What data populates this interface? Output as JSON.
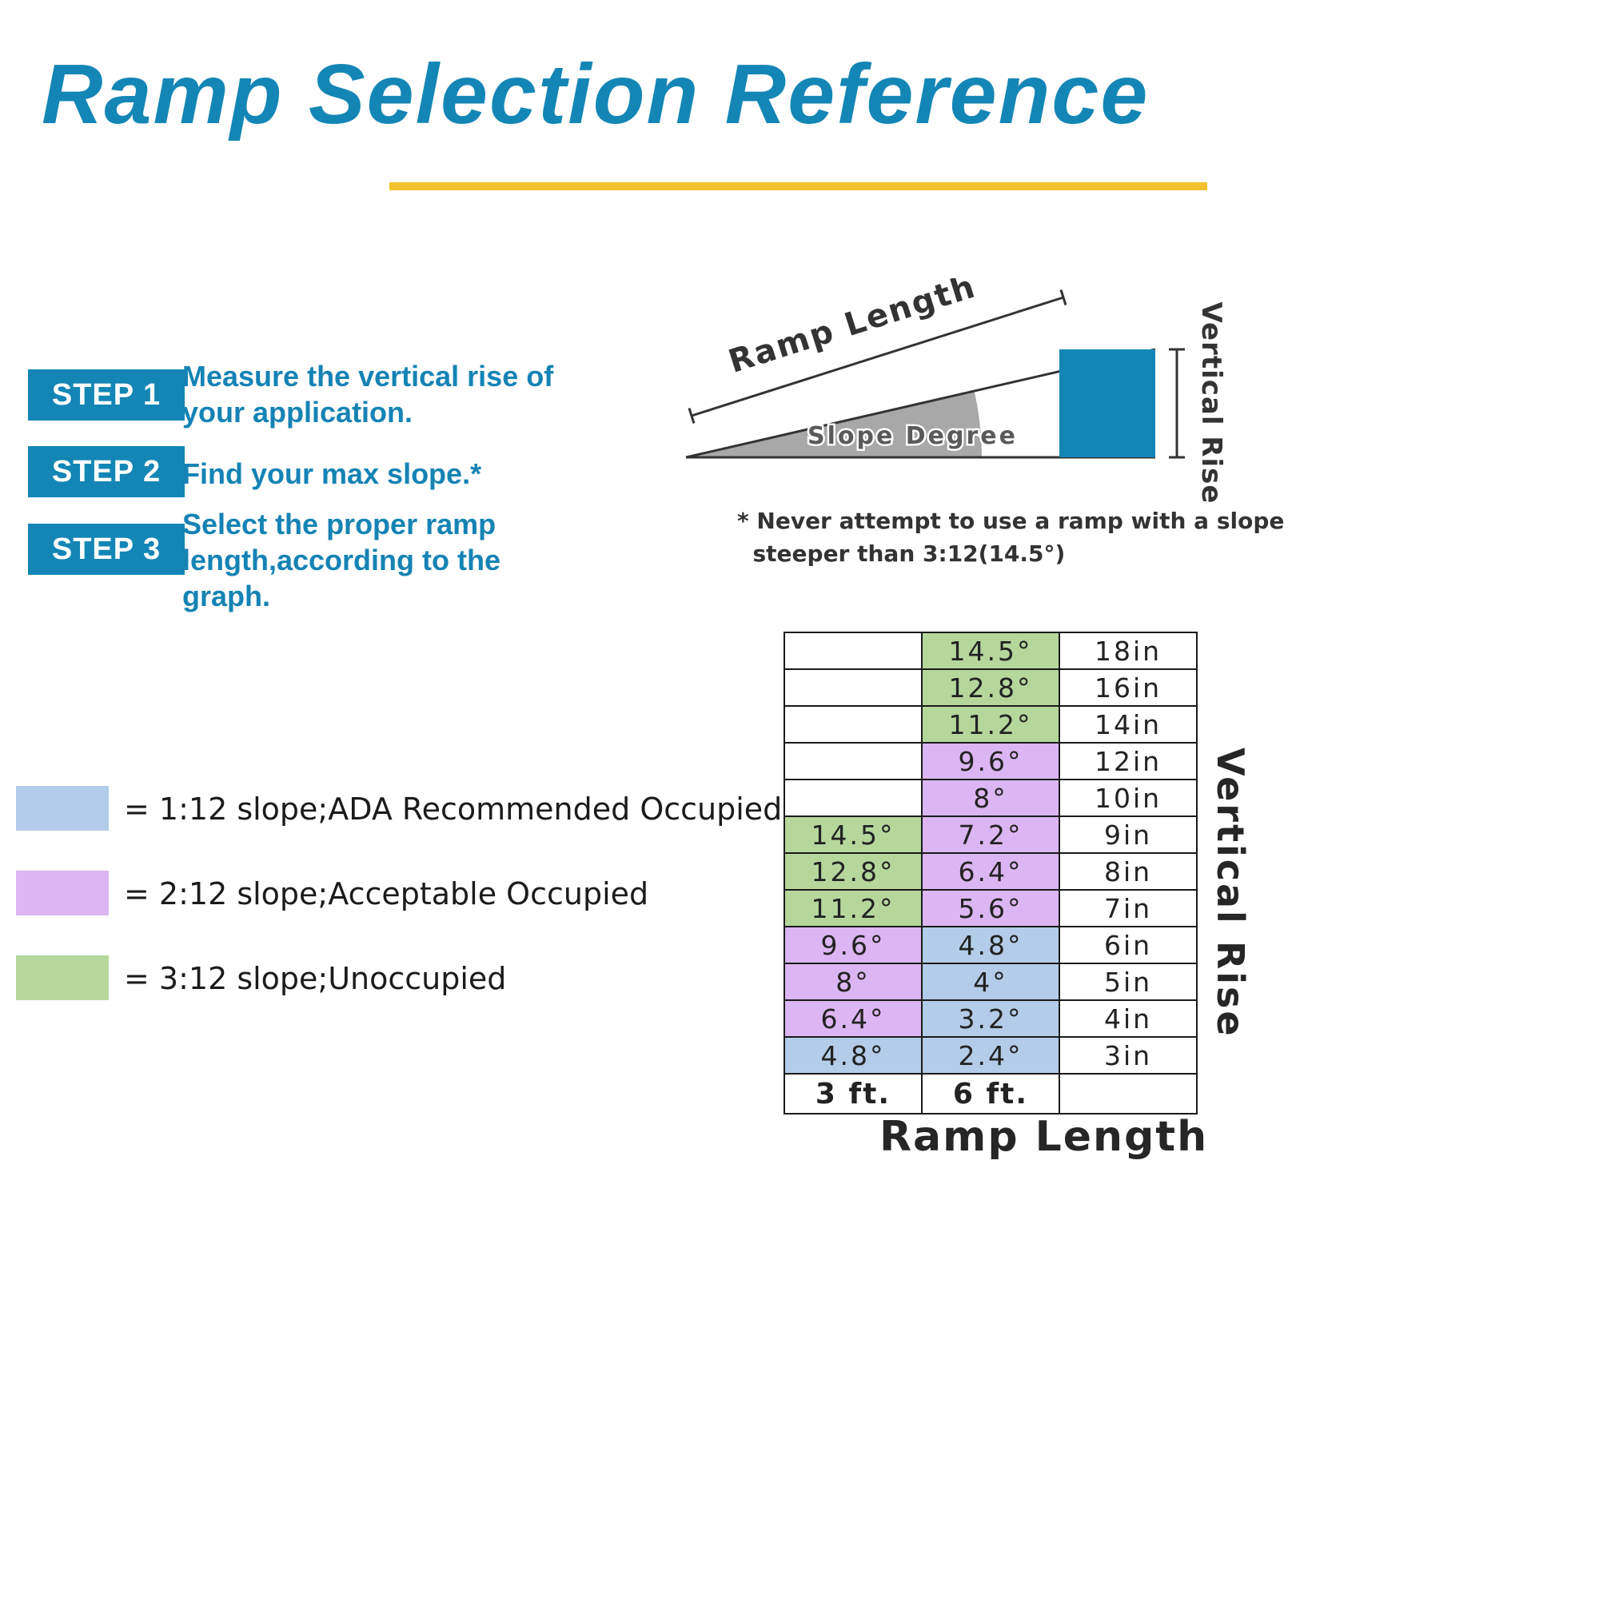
{
  "title": "Ramp Selection Reference",
  "accent": {
    "title_color": "#1486b6",
    "underline_color": "#f3c32f",
    "step_box_color": "#1486b6",
    "ramp_block_color": "#1486b6"
  },
  "steps": [
    {
      "label": "STEP 1",
      "text": "Measure the vertical rise of\nyour application."
    },
    {
      "label": "STEP 2",
      "text": "Find your max slope.*"
    },
    {
      "label": "STEP 3",
      "text": "Select the proper ramp\nlength,according to the\ngraph."
    }
  ],
  "diagram": {
    "ramp_length_label": "Ramp Length",
    "slope_degree_label": "Slope Degree",
    "vertical_rise_label": "Vertical Rise",
    "note": "* Never attempt to use a ramp with a slope\n  steeper than 3:12(14.5°)"
  },
  "legend": {
    "items": [
      {
        "color_key": "blue",
        "label": "= 1:12 slope;ADA Recommended Occupied"
      },
      {
        "color_key": "purple",
        "label": "= 2:12 slope;Acceptable Occupied"
      },
      {
        "color_key": "green",
        "label": "= 3:12 slope;Unoccupied"
      }
    ]
  },
  "colors": {
    "blue": "#b3cce9",
    "purple": "#dcb6f2",
    "green": "#b6d79c",
    "white": "#ffffff"
  },
  "chart_data": {
    "type": "table",
    "x_axis_label": "Ramp Length",
    "y_axis_label": "Vertical Rise",
    "columns": [
      "3 ft.",
      "6 ft."
    ],
    "legend_meaning": {
      "blue": "1:12 slope",
      "purple": "2:12 slope",
      "green": "3:12 slope"
    },
    "rows": [
      {
        "rise": "18in",
        "ft3": "",
        "ft3_color": "white",
        "ft6": "14.5°",
        "ft6_color": "green"
      },
      {
        "rise": "16in",
        "ft3": "",
        "ft3_color": "white",
        "ft6": "12.8°",
        "ft6_color": "green"
      },
      {
        "rise": "14in",
        "ft3": "",
        "ft3_color": "white",
        "ft6": "11.2°",
        "ft6_color": "green"
      },
      {
        "rise": "12in",
        "ft3": "",
        "ft3_color": "white",
        "ft6": "9.6°",
        "ft6_color": "purple"
      },
      {
        "rise": "10in",
        "ft3": "",
        "ft3_color": "white",
        "ft6": "8°",
        "ft6_color": "purple"
      },
      {
        "rise": "9in",
        "ft3": "14.5°",
        "ft3_color": "green",
        "ft6": "7.2°",
        "ft6_color": "purple"
      },
      {
        "rise": "8in",
        "ft3": "12.8°",
        "ft3_color": "green",
        "ft6": "6.4°",
        "ft6_color": "purple"
      },
      {
        "rise": "7in",
        "ft3": "11.2°",
        "ft3_color": "green",
        "ft6": "5.6°",
        "ft6_color": "purple"
      },
      {
        "rise": "6in",
        "ft3": "9.6°",
        "ft3_color": "purple",
        "ft6": "4.8°",
        "ft6_color": "blue"
      },
      {
        "rise": "5in",
        "ft3": "8°",
        "ft3_color": "purple",
        "ft6": "4°",
        "ft6_color": "blue"
      },
      {
        "rise": "4in",
        "ft3": "6.4°",
        "ft3_color": "purple",
        "ft6": "3.2°",
        "ft6_color": "blue"
      },
      {
        "rise": "3in",
        "ft3": "4.8°",
        "ft3_color": "blue",
        "ft6": "2.4°",
        "ft6_color": "blue"
      }
    ]
  }
}
